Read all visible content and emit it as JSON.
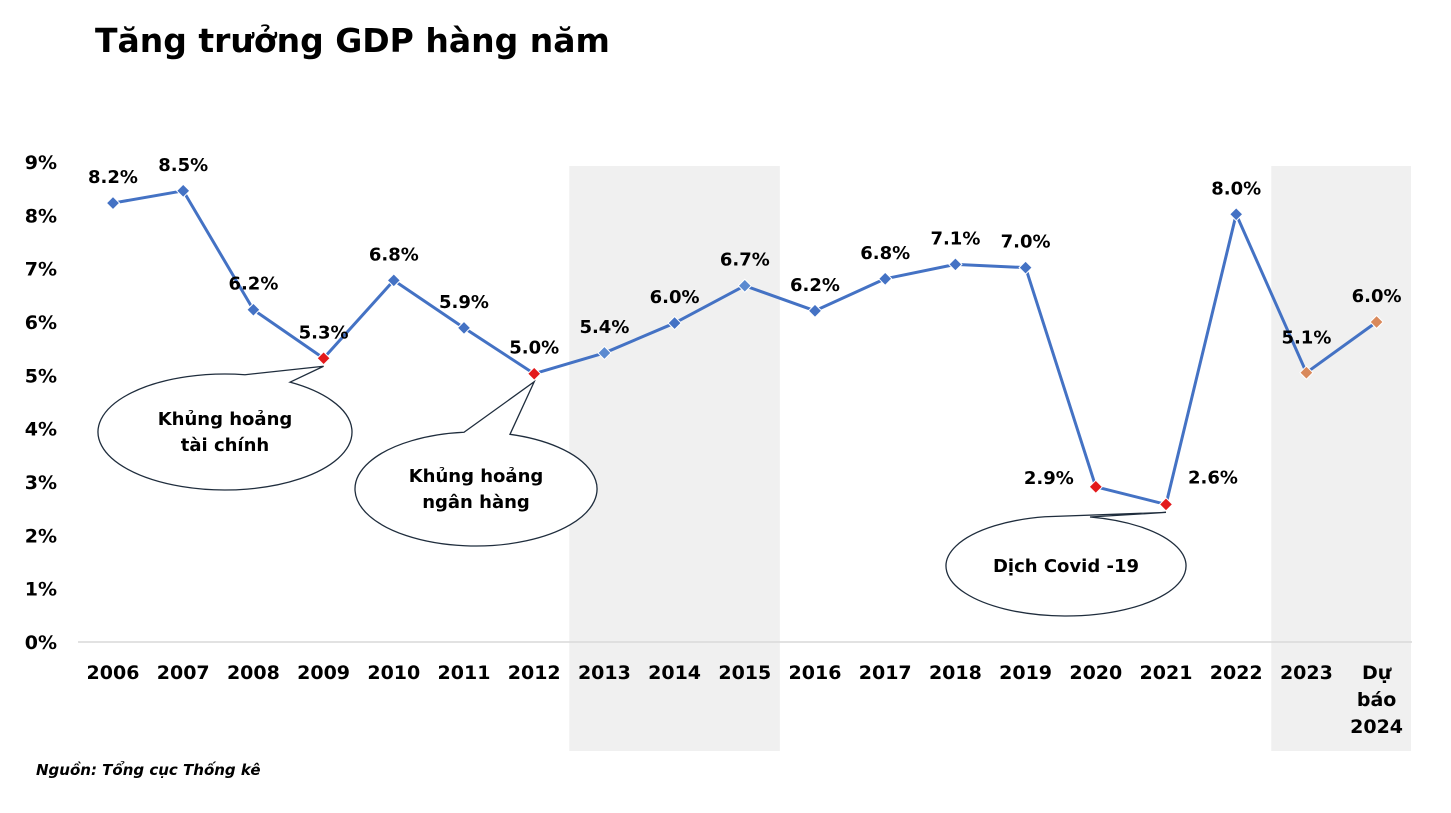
{
  "chart_data": {
    "type": "line",
    "title": "Tăng trưởng GDP hàng năm",
    "xlabel": "",
    "ylabel": "",
    "categories": [
      "2006",
      "2007",
      "2008",
      "2009",
      "2010",
      "2011",
      "2012",
      "2013",
      "2014",
      "2015",
      "2016",
      "2017",
      "2018",
      "2019",
      "2020",
      "2021",
      "2022",
      "2023",
      "Dự báo 2024"
    ],
    "series": [
      {
        "values": [
          8.23,
          8.46,
          6.23,
          5.32,
          6.78,
          5.89,
          5.03,
          5.42,
          5.98,
          6.68,
          6.21,
          6.81,
          7.08,
          7.02,
          2.91,
          2.58,
          8.02,
          5.05,
          6.0
        ]
      }
    ],
    "data_labels": [
      "8.2%",
      "8.5%",
      "6.2%",
      "5.3%",
      "6.8%",
      "5.9%",
      "5.0%",
      "5.4%",
      "6.0%",
      "6.7%",
      "6.2%",
      "6.8%",
      "7.1%",
      "7.0%",
      "2.9%",
      "2.6%",
      "8.0%",
      "5.1%",
      "6.0%"
    ],
    "y_ticks": [
      "0%",
      "1%",
      "2%",
      "3%",
      "4%",
      "5%",
      "6%",
      "7%",
      "8%",
      "9%"
    ],
    "ylim": [
      0,
      9
    ],
    "grid": false,
    "legend": "none",
    "line_color": "#4472C4",
    "marker_colors": [
      "#4472C4",
      "#4472C4",
      "#4472C4",
      "#E31A1C",
      "#4472C4",
      "#4472C4",
      "#E31A1C",
      "#5B8AD0",
      "#4472C4",
      "#5B8AD0",
      "#4472C4",
      "#4472C4",
      "#4472C4",
      "#4472C4",
      "#E31A1C",
      "#E31A1C",
      "#4472C4",
      "#D9895B",
      "#D9895B"
    ],
    "shaded_ranges": [
      [
        "2013",
        "2015"
      ],
      [
        "2023",
        "Dự báo 2024"
      ]
    ],
    "shade_color": "#F0F0F0",
    "annotations": [
      {
        "lines": [
          "Khủng hoảng",
          "tài chính"
        ],
        "points_to": "2009"
      },
      {
        "lines": [
          "Khủng hoảng",
          "ngân hàng"
        ],
        "points_to": "2012"
      },
      {
        "lines": [
          "Dịch Covid -19"
        ],
        "points_to": "2021"
      }
    ],
    "source": "Nguồn: Tổng cục Thống kê"
  }
}
